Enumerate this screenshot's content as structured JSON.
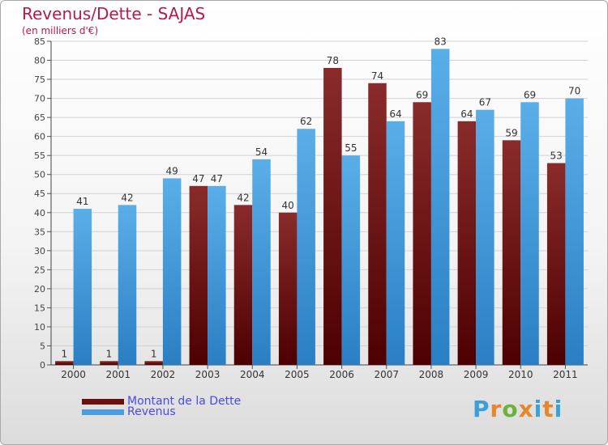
{
  "title": "Revenus/Dette - SAJAS",
  "subtitle": "(en milliers d'€)",
  "logo": {
    "text": "Proxiti",
    "colors": [
      "#3aa0d8",
      "#e8862a",
      "#6bb33a",
      "#e8862a",
      "#3aa0d8",
      "#e8862a",
      "#3aa0d8"
    ]
  },
  "legend": [
    {
      "label": "Montant de la Dette",
      "color": "#6b0f0f"
    },
    {
      "label": "Revenus",
      "color": "#4a9ee0"
    }
  ],
  "chart_data": {
    "type": "bar",
    "title": "Revenus/Dette - SAJAS",
    "subtitle": "(en milliers d'€)",
    "categories": [
      "2000",
      "2001",
      "2002",
      "2003",
      "2004",
      "2005",
      "2006",
      "2007",
      "2008",
      "2009",
      "2010",
      "2011"
    ],
    "series": [
      {
        "name": "Montant de la Dette",
        "color": "#7a1e1e",
        "values": [
          1,
          1,
          1,
          47,
          42,
          40,
          78,
          74,
          69,
          64,
          59,
          53
        ]
      },
      {
        "name": "Revenus",
        "color": "#4a9ee0",
        "values": [
          41,
          42,
          49,
          47,
          54,
          62,
          55,
          64,
          83,
          67,
          69,
          70
        ]
      }
    ],
    "ylim": [
      0,
      85
    ],
    "ytick_step": 5,
    "grid": true,
    "legend_position": "bottom-left"
  }
}
